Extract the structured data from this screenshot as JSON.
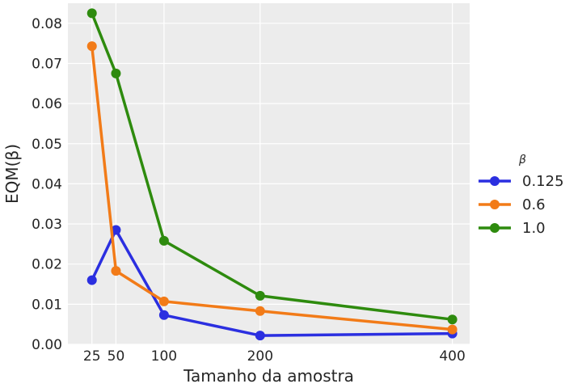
{
  "chart_data": {
    "type": "line",
    "title": "",
    "xlabel": "Tamanho da amostra",
    "ylabel": "EQM(β)",
    "x": [
      25,
      50,
      100,
      200,
      400
    ],
    "x_ticks": [
      25,
      50,
      100,
      200,
      400
    ],
    "xlim": [
      0,
      418
    ],
    "ylim": [
      0,
      0.085
    ],
    "y_ticks": [
      "0.00",
      "0.01",
      "0.02",
      "0.03",
      "0.04",
      "0.05",
      "0.06",
      "0.07",
      "0.08"
    ],
    "grid": true,
    "legend": {
      "title": "β",
      "placement": "right"
    },
    "series": [
      {
        "name": "0.125",
        "color": "#2b2fe0",
        "values": [
          0.016,
          0.0285,
          0.0073,
          0.0022,
          0.0027
        ]
      },
      {
        "name": "0.6",
        "color": "#f27b18",
        "values": [
          0.0743,
          0.0183,
          0.0107,
          0.0083,
          0.0037
        ]
      },
      {
        "name": "1.0",
        "color": "#2e8b0e",
        "values": [
          0.0825,
          0.0675,
          0.0258,
          0.0121,
          0.0062
        ]
      }
    ]
  }
}
